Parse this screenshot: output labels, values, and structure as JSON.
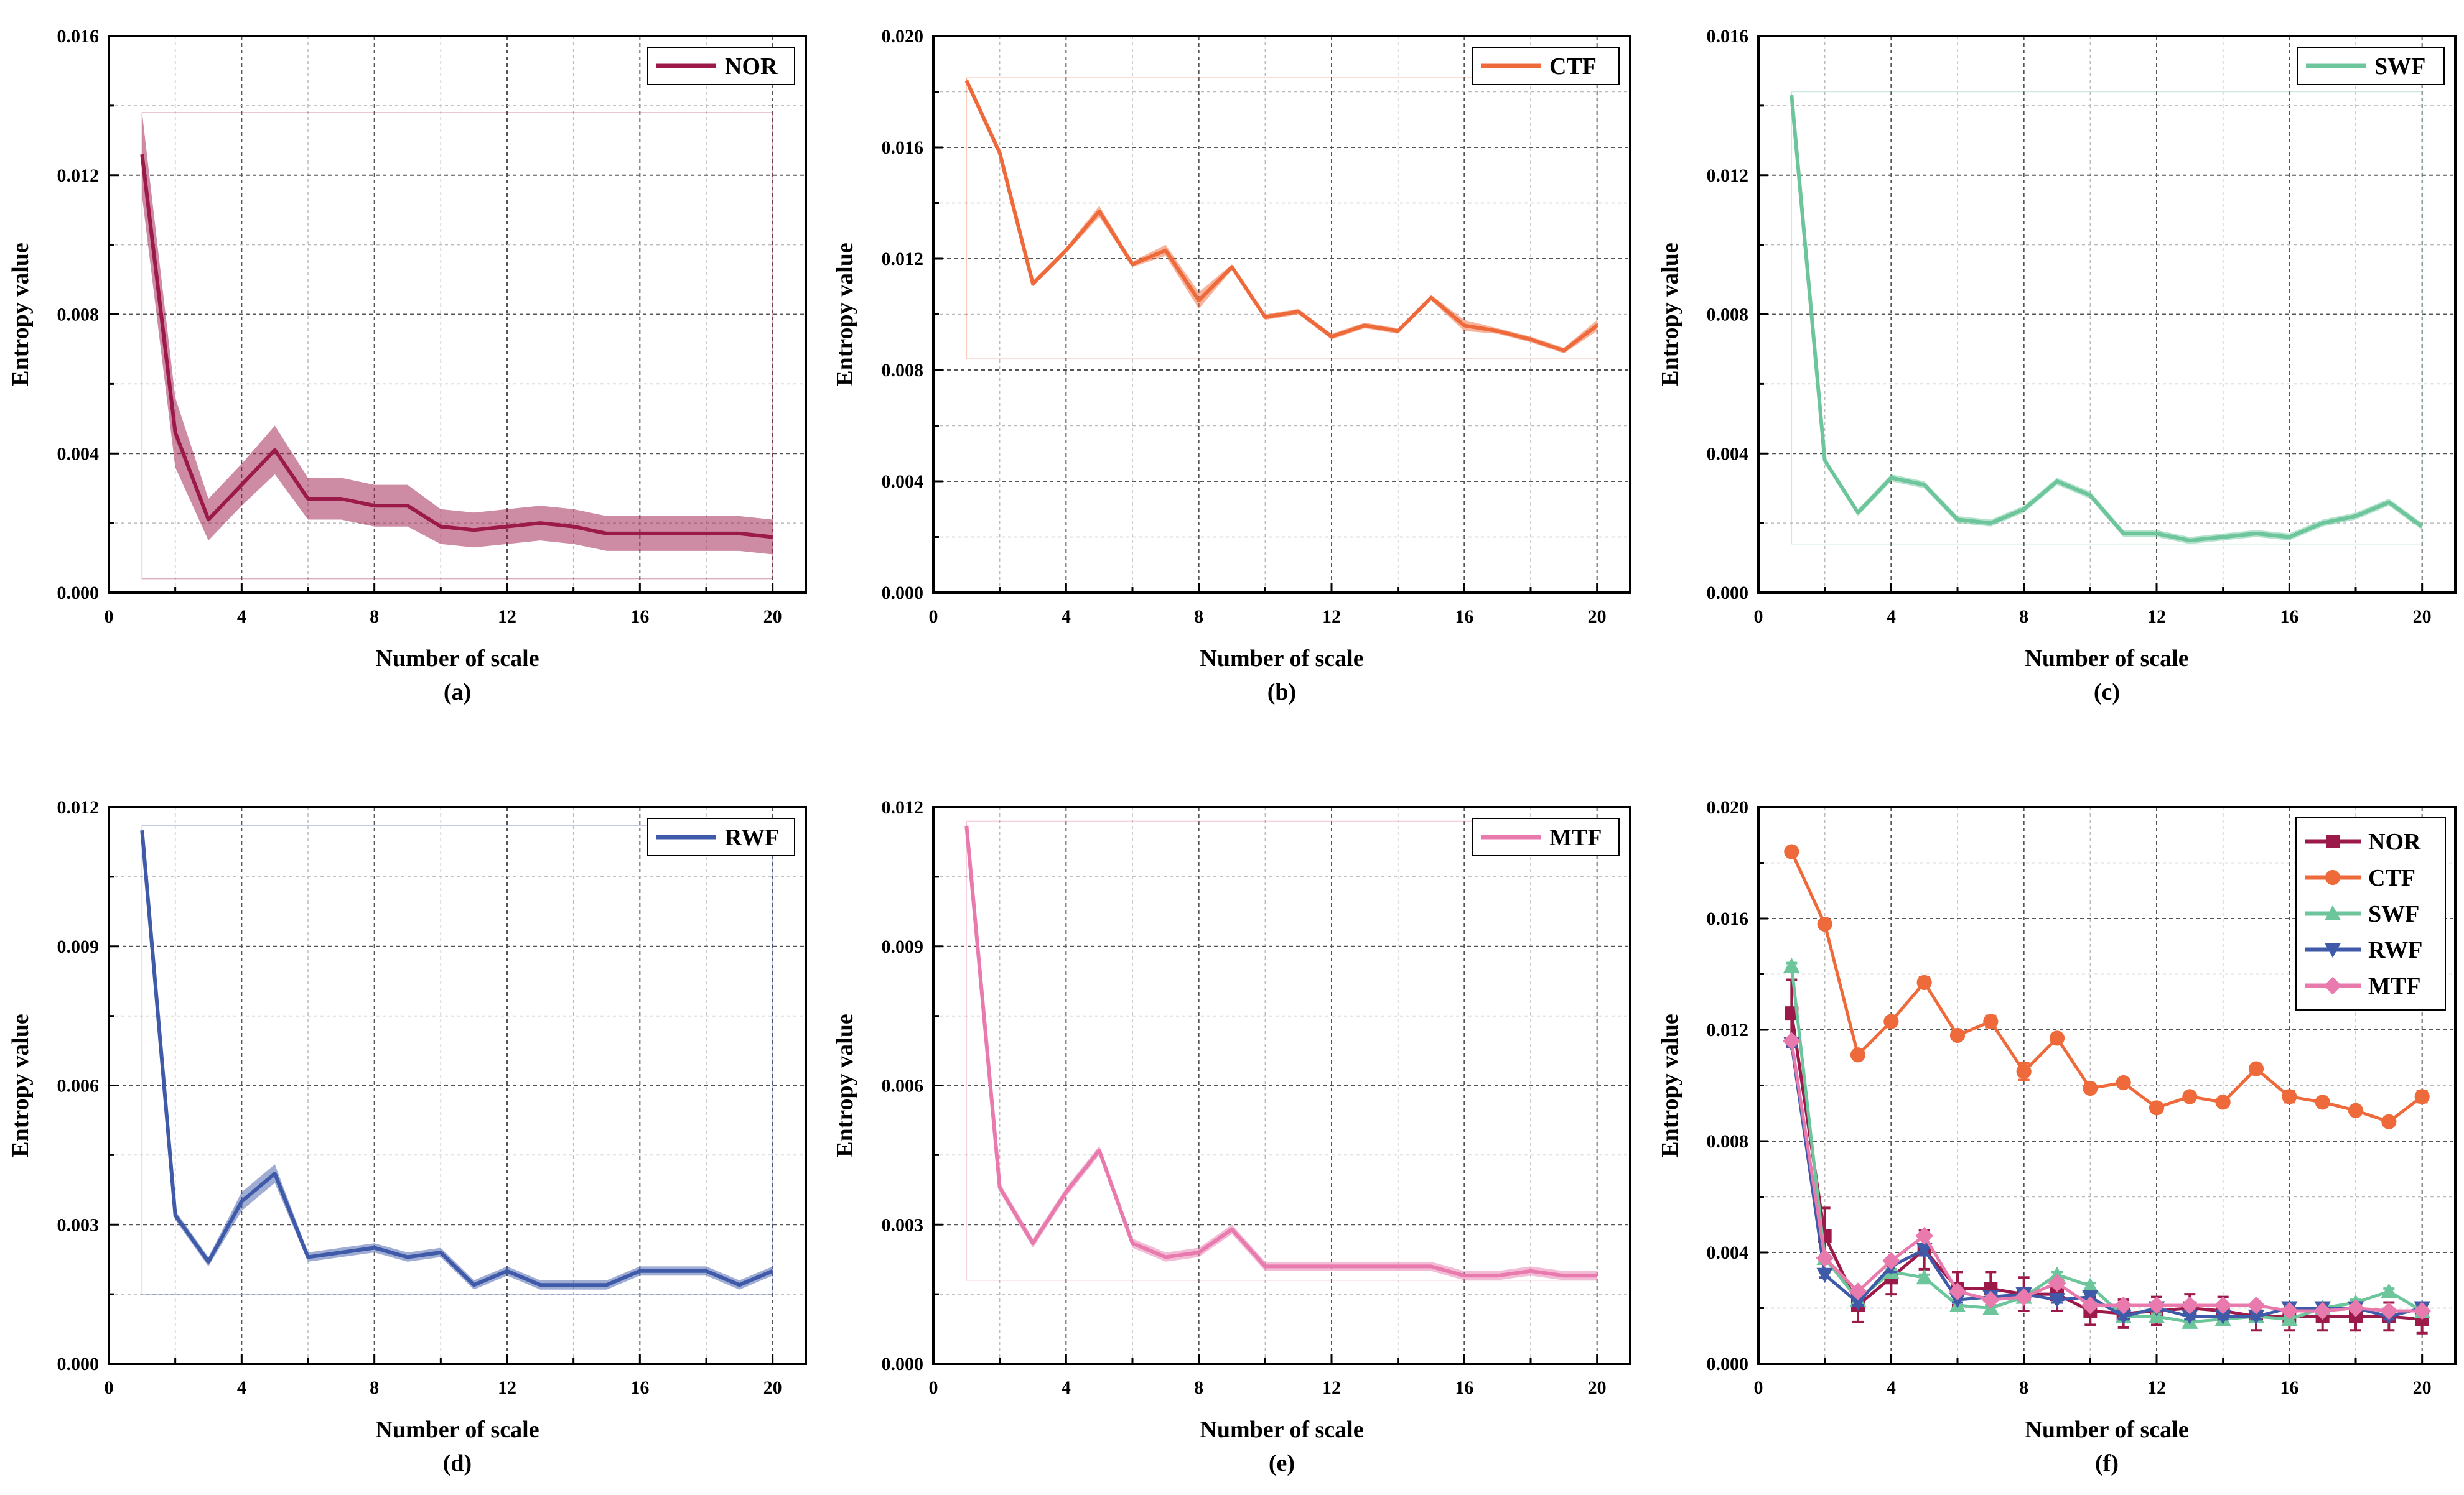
{
  "figure": {
    "background": "#ffffff"
  },
  "chart_data": [
    {
      "id": "a",
      "type": "line",
      "caption": "(a)",
      "xlabel": "Number of scale",
      "ylabel": "Entropy value",
      "xlim": [
        0,
        21
      ],
      "ylim": [
        0,
        0.016
      ],
      "xticks": [
        "0",
        "4",
        "8",
        "12",
        "16",
        "20"
      ],
      "yticks": [
        "0.000",
        "0.004",
        "0.008",
        "0.012",
        "0.016"
      ],
      "grid": true,
      "legend": "top-right",
      "band": true,
      "series": [
        {
          "name": "NOR",
          "color": "#9c1a49",
          "marker": "square",
          "x": [
            1,
            2,
            3,
            4,
            5,
            6,
            7,
            8,
            9,
            10,
            11,
            12,
            13,
            14,
            15,
            16,
            17,
            18,
            19,
            20
          ],
          "values": [
            0.0126,
            0.0046,
            0.0021,
            0.0031,
            0.0041,
            0.0027,
            0.0027,
            0.0025,
            0.0025,
            0.0019,
            0.0018,
            0.0019,
            0.002,
            0.0019,
            0.0017,
            0.0017,
            0.0017,
            0.0017,
            0.0017,
            0.0016
          ],
          "spread": [
            0.0012,
            0.001,
            0.0006,
            0.0006,
            0.0007,
            0.0006,
            0.0006,
            0.0006,
            0.0006,
            0.0005,
            0.0005,
            0.0005,
            0.0005,
            0.0005,
            0.0005,
            0.0005,
            0.0005,
            0.0005,
            0.0005,
            0.0005
          ]
        }
      ]
    },
    {
      "id": "b",
      "type": "line",
      "caption": "(b)",
      "xlabel": "Number of scale",
      "ylabel": "Entropy value",
      "xlim": [
        0,
        21
      ],
      "ylim": [
        0,
        0.02
      ],
      "xticks": [
        "0",
        "4",
        "8",
        "12",
        "16",
        "20"
      ],
      "yticks": [
        "0.000",
        "0.004",
        "0.008",
        "0.012",
        "0.016",
        "0.020"
      ],
      "grid": true,
      "legend": "top-right",
      "band": true,
      "series": [
        {
          "name": "CTF",
          "color": "#ee6a3b",
          "marker": "circle",
          "x": [
            1,
            2,
            3,
            4,
            5,
            6,
            7,
            8,
            9,
            10,
            11,
            12,
            13,
            14,
            15,
            16,
            17,
            18,
            19,
            20
          ],
          "values": [
            0.0184,
            0.0158,
            0.0111,
            0.0123,
            0.0137,
            0.0118,
            0.0123,
            0.0105,
            0.0117,
            0.0099,
            0.0101,
            0.0092,
            0.0096,
            0.0094,
            0.0106,
            0.0096,
            0.0094,
            0.0091,
            0.0087,
            0.0096
          ],
          "spread": [
            0.0001,
            0.0001,
            0.0001,
            0.0001,
            0.0002,
            0.0001,
            0.0002,
            0.0003,
            0.0001,
            0.0001,
            0.0001,
            0.0001,
            0.0001,
            0.0001,
            0.0001,
            0.0002,
            0.0001,
            0.0001,
            0.0001,
            0.0002
          ]
        }
      ]
    },
    {
      "id": "c",
      "type": "line",
      "caption": "(c)",
      "xlabel": "Number of scale",
      "ylabel": "Entropy value",
      "xlim": [
        0,
        21
      ],
      "ylim": [
        0,
        0.016
      ],
      "xticks": [
        "0",
        "4",
        "8",
        "12",
        "16",
        "20"
      ],
      "yticks": [
        "0.000",
        "0.004",
        "0.008",
        "0.012",
        "0.016"
      ],
      "grid": true,
      "legend": "top-right",
      "band": true,
      "series": [
        {
          "name": "SWF",
          "color": "#6cc59b",
          "marker": "triangle-up",
          "x": [
            1,
            2,
            3,
            4,
            5,
            6,
            7,
            8,
            9,
            10,
            11,
            12,
            13,
            14,
            15,
            16,
            17,
            18,
            19,
            20
          ],
          "values": [
            0.0143,
            0.0038,
            0.0023,
            0.0033,
            0.0031,
            0.0021,
            0.002,
            0.0024,
            0.0032,
            0.0028,
            0.0017,
            0.0017,
            0.0015,
            0.0016,
            0.0017,
            0.0016,
            0.002,
            0.0022,
            0.0026,
            0.0019
          ],
          "spread": [
            0.0001,
            0.0001,
            0.0001,
            0.0001,
            0.0001,
            0.0001,
            0.0001,
            0.0001,
            0.0001,
            0.0001,
            0.0001,
            0.0001,
            0.0001,
            0.0001,
            0.0001,
            0.0001,
            0.0001,
            0.0001,
            0.0001,
            0.0001
          ]
        }
      ]
    },
    {
      "id": "d",
      "type": "line",
      "caption": "(d)",
      "xlabel": "Number of scale",
      "ylabel": "Entropy value",
      "xlim": [
        0,
        21
      ],
      "ylim": [
        0,
        0.012
      ],
      "xticks": [
        "0",
        "4",
        "8",
        "12",
        "16",
        "20"
      ],
      "yticks": [
        "0.000",
        "0.003",
        "0.006",
        "0.009",
        "0.012"
      ],
      "grid": true,
      "legend": "top-right",
      "band": true,
      "series": [
        {
          "name": "RWF",
          "color": "#3f5aa8",
          "marker": "triangle-down",
          "x": [
            1,
            2,
            3,
            4,
            5,
            6,
            7,
            8,
            9,
            10,
            11,
            12,
            13,
            14,
            15,
            16,
            17,
            18,
            19,
            20
          ],
          "values": [
            0.0115,
            0.0032,
            0.0022,
            0.0035,
            0.0041,
            0.0023,
            0.0024,
            0.0025,
            0.0023,
            0.0024,
            0.0017,
            0.002,
            0.0017,
            0.0017,
            0.0017,
            0.002,
            0.002,
            0.002,
            0.0017,
            0.002
          ],
          "spread": [
            0.0001,
            0.0001,
            0.0001,
            0.0002,
            0.0002,
            0.0001,
            0.0001,
            0.0001,
            0.0001,
            0.0001,
            0.0001,
            0.0001,
            0.0001,
            0.0001,
            0.0001,
            0.0001,
            0.0001,
            0.0001,
            0.0001,
            0.0001
          ]
        }
      ]
    },
    {
      "id": "e",
      "type": "line",
      "caption": "(e)",
      "xlabel": "Number of scale",
      "ylabel": "Entropy value",
      "xlim": [
        0,
        21
      ],
      "ylim": [
        0,
        0.012
      ],
      "xticks": [
        "0",
        "4",
        "8",
        "12",
        "16",
        "20"
      ],
      "yticks": [
        "0.000",
        "0.003",
        "0.006",
        "0.009",
        "0.012"
      ],
      "grid": true,
      "legend": "top-right",
      "band": true,
      "series": [
        {
          "name": "MTF",
          "color": "#e87aad",
          "marker": "diamond",
          "x": [
            1,
            2,
            3,
            4,
            5,
            6,
            7,
            8,
            9,
            10,
            11,
            12,
            13,
            14,
            15,
            16,
            17,
            18,
            19,
            20
          ],
          "values": [
            0.0116,
            0.0038,
            0.0026,
            0.0037,
            0.0046,
            0.0026,
            0.0023,
            0.0024,
            0.0029,
            0.0021,
            0.0021,
            0.0021,
            0.0021,
            0.0021,
            0.0021,
            0.0019,
            0.0019,
            0.002,
            0.0019,
            0.0019
          ],
          "spread": [
            0.0001,
            0.0001,
            0.0001,
            0.0001,
            0.0001,
            0.0001,
            0.0001,
            0.0001,
            0.0001,
            0.0001,
            0.0001,
            0.0001,
            0.0001,
            0.0001,
            0.0001,
            0.0001,
            0.0001,
            0.0001,
            0.0001,
            0.0001
          ]
        }
      ]
    },
    {
      "id": "f",
      "type": "line",
      "caption": "(f)",
      "xlabel": "Number of scale",
      "ylabel": "Entropy value",
      "xlim": [
        0,
        21
      ],
      "ylim": [
        0,
        0.02
      ],
      "xticks": [
        "0",
        "4",
        "8",
        "12",
        "16",
        "20"
      ],
      "yticks": [
        "0.000",
        "0.004",
        "0.008",
        "0.012",
        "0.016",
        "0.020"
      ],
      "grid": true,
      "legend": "top-right",
      "band": false,
      "error_bars": true,
      "series": [
        {
          "name": "NOR",
          "color": "#9c1a49",
          "marker": "square",
          "x": [
            1,
            2,
            3,
            4,
            5,
            6,
            7,
            8,
            9,
            10,
            11,
            12,
            13,
            14,
            15,
            16,
            17,
            18,
            19,
            20
          ],
          "values": [
            0.0126,
            0.0046,
            0.0021,
            0.0031,
            0.0041,
            0.0027,
            0.0027,
            0.0025,
            0.0025,
            0.0019,
            0.0018,
            0.0019,
            0.002,
            0.0019,
            0.0017,
            0.0017,
            0.0017,
            0.0017,
            0.0017,
            0.0016
          ],
          "spread": [
            0.0012,
            0.001,
            0.0006,
            0.0006,
            0.0007,
            0.0006,
            0.0006,
            0.0006,
            0.0006,
            0.0005,
            0.0005,
            0.0005,
            0.0005,
            0.0005,
            0.0005,
            0.0005,
            0.0005,
            0.0005,
            0.0005,
            0.0005
          ]
        },
        {
          "name": "CTF",
          "color": "#ee6a3b",
          "marker": "circle",
          "x": [
            1,
            2,
            3,
            4,
            5,
            6,
            7,
            8,
            9,
            10,
            11,
            12,
            13,
            14,
            15,
            16,
            17,
            18,
            19,
            20
          ],
          "values": [
            0.0184,
            0.0158,
            0.0111,
            0.0123,
            0.0137,
            0.0118,
            0.0123,
            0.0105,
            0.0117,
            0.0099,
            0.0101,
            0.0092,
            0.0096,
            0.0094,
            0.0106,
            0.0096,
            0.0094,
            0.0091,
            0.0087,
            0.0096
          ],
          "spread": [
            0.0001,
            0.0001,
            0.0001,
            0.0001,
            0.0002,
            0.0001,
            0.0002,
            0.0003,
            0.0001,
            0.0001,
            0.0001,
            0.0001,
            0.0001,
            0.0001,
            0.0001,
            0.0002,
            0.0001,
            0.0001,
            0.0001,
            0.0002
          ]
        },
        {
          "name": "SWF",
          "color": "#6cc59b",
          "marker": "triangle-up",
          "x": [
            1,
            2,
            3,
            4,
            5,
            6,
            7,
            8,
            9,
            10,
            11,
            12,
            13,
            14,
            15,
            16,
            17,
            18,
            19,
            20
          ],
          "values": [
            0.0143,
            0.0038,
            0.0023,
            0.0033,
            0.0031,
            0.0021,
            0.002,
            0.0024,
            0.0032,
            0.0028,
            0.0017,
            0.0017,
            0.0015,
            0.0016,
            0.0017,
            0.0016,
            0.002,
            0.0022,
            0.0026,
            0.0019
          ],
          "spread": [
            0.0001,
            0.0001,
            0.0001,
            0.0001,
            0.0001,
            0.0001,
            0.0001,
            0.0001,
            0.0001,
            0.0001,
            0.0001,
            0.0001,
            0.0001,
            0.0001,
            0.0001,
            0.0001,
            0.0001,
            0.0001,
            0.0001,
            0.0001
          ]
        },
        {
          "name": "RWF",
          "color": "#3f5aa8",
          "marker": "triangle-down",
          "x": [
            1,
            2,
            3,
            4,
            5,
            6,
            7,
            8,
            9,
            10,
            11,
            12,
            13,
            14,
            15,
            16,
            17,
            18,
            19,
            20
          ],
          "values": [
            0.0115,
            0.0032,
            0.0022,
            0.0035,
            0.0041,
            0.0023,
            0.0024,
            0.0025,
            0.0023,
            0.0024,
            0.0017,
            0.002,
            0.0017,
            0.0017,
            0.0017,
            0.002,
            0.002,
            0.002,
            0.0017,
            0.002
          ],
          "spread": [
            0.0001,
            0.0001,
            0.0001,
            0.0002,
            0.0002,
            0.0001,
            0.0001,
            0.0001,
            0.0001,
            0.0001,
            0.0001,
            0.0001,
            0.0001,
            0.0001,
            0.0001,
            0.0001,
            0.0001,
            0.0001,
            0.0001,
            0.0001
          ]
        },
        {
          "name": "MTF",
          "color": "#e87aad",
          "marker": "diamond",
          "x": [
            1,
            2,
            3,
            4,
            5,
            6,
            7,
            8,
            9,
            10,
            11,
            12,
            13,
            14,
            15,
            16,
            17,
            18,
            19,
            20
          ],
          "values": [
            0.0116,
            0.0038,
            0.0026,
            0.0037,
            0.0046,
            0.0026,
            0.0023,
            0.0024,
            0.0029,
            0.0021,
            0.0021,
            0.0021,
            0.0021,
            0.0021,
            0.0021,
            0.0019,
            0.0019,
            0.002,
            0.0019,
            0.0019
          ],
          "spread": [
            0.0001,
            0.0001,
            0.0001,
            0.0001,
            0.0001,
            0.0001,
            0.0001,
            0.0001,
            0.0001,
            0.0001,
            0.0001,
            0.0001,
            0.0001,
            0.0001,
            0.0001,
            0.0001,
            0.0001,
            0.0001,
            0.0001,
            0.0001
          ]
        }
      ]
    }
  ]
}
